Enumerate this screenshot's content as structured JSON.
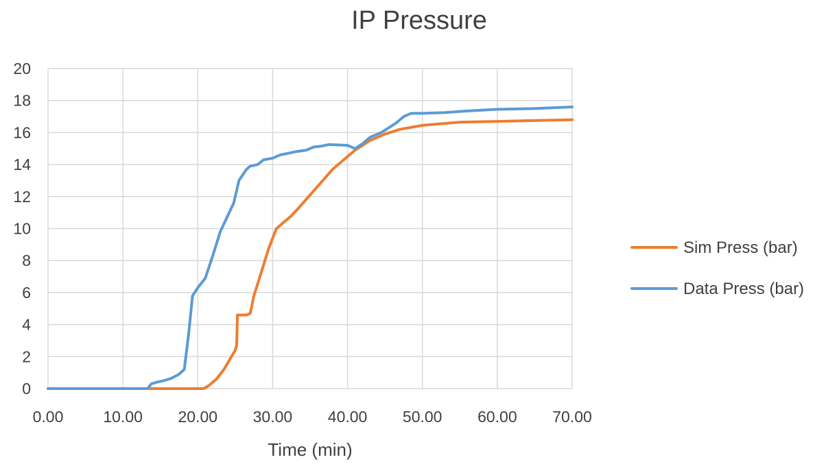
{
  "chart_data": {
    "type": "line",
    "title": "IP Pressure",
    "xlabel": "Time (min)",
    "ylabel": "",
    "xlim": [
      0,
      70
    ],
    "ylim": [
      0,
      20
    ],
    "x_ticks": [
      "0.00",
      "10.00",
      "20.00",
      "30.00",
      "40.00",
      "50.00",
      "60.00",
      "70.00"
    ],
    "y_ticks": [
      "0",
      "2",
      "4",
      "6",
      "8",
      "10",
      "12",
      "14",
      "16",
      "18",
      "20"
    ],
    "grid": true,
    "legend_position": "right",
    "series": [
      {
        "name": "Sim Press (bar)",
        "color": "#ed7d31",
        "points": [
          [
            0,
            0
          ],
          [
            14,
            0
          ],
          [
            20.8,
            0
          ],
          [
            21.5,
            0.2
          ],
          [
            22.5,
            0.6
          ],
          [
            23.5,
            1.2
          ],
          [
            24.5,
            2.0
          ],
          [
            25.0,
            2.4
          ],
          [
            25.2,
            2.7
          ],
          [
            25.3,
            4.6
          ],
          [
            26.5,
            4.6
          ],
          [
            27.0,
            4.7
          ],
          [
            27.5,
            5.8
          ],
          [
            28.5,
            7.3
          ],
          [
            29.5,
            8.8
          ],
          [
            30.5,
            10.0
          ],
          [
            31.5,
            10.4
          ],
          [
            32.5,
            10.8
          ],
          [
            33.5,
            11.3
          ],
          [
            35,
            12.1
          ],
          [
            36.5,
            12.9
          ],
          [
            38,
            13.7
          ],
          [
            39.5,
            14.3
          ],
          [
            41,
            14.9
          ],
          [
            43,
            15.5
          ],
          [
            45,
            15.9
          ],
          [
            47,
            16.2
          ],
          [
            50,
            16.45
          ],
          [
            55,
            16.65
          ],
          [
            60,
            16.7
          ],
          [
            65,
            16.75
          ],
          [
            70,
            16.8
          ]
        ]
      },
      {
        "name": "Data Press (bar)",
        "color": "#5b9bd5",
        "points": [
          [
            0,
            0
          ],
          [
            13.3,
            0
          ],
          [
            13.8,
            0.3
          ],
          [
            14.5,
            0.4
          ],
          [
            15.5,
            0.5
          ],
          [
            16.5,
            0.65
          ],
          [
            17.5,
            0.9
          ],
          [
            18.2,
            1.2
          ],
          [
            18.8,
            3.5
          ],
          [
            19.3,
            5.8
          ],
          [
            20.0,
            6.3
          ],
          [
            21.0,
            6.9
          ],
          [
            22.0,
            8.3
          ],
          [
            23.0,
            9.8
          ],
          [
            24.0,
            10.8
          ],
          [
            24.8,
            11.6
          ],
          [
            25.5,
            13.0
          ],
          [
            26.5,
            13.7
          ],
          [
            27.0,
            13.9
          ],
          [
            28.0,
            14.0
          ],
          [
            28.8,
            14.3
          ],
          [
            30.0,
            14.4
          ],
          [
            31.0,
            14.6
          ],
          [
            32.0,
            14.7
          ],
          [
            33.0,
            14.8
          ],
          [
            34.5,
            14.9
          ],
          [
            35.5,
            15.1
          ],
          [
            36.5,
            15.15
          ],
          [
            37.5,
            15.25
          ],
          [
            40.0,
            15.2
          ],
          [
            41.0,
            15.0
          ],
          [
            42.0,
            15.3
          ],
          [
            43.0,
            15.7
          ],
          [
            44.5,
            16.0
          ],
          [
            45.5,
            16.3
          ],
          [
            46.5,
            16.6
          ],
          [
            47.5,
            17.0
          ],
          [
            48.5,
            17.2
          ],
          [
            50,
            17.2
          ],
          [
            53,
            17.25
          ],
          [
            56,
            17.35
          ],
          [
            60,
            17.45
          ],
          [
            65,
            17.5
          ],
          [
            70,
            17.6
          ]
        ]
      }
    ]
  }
}
